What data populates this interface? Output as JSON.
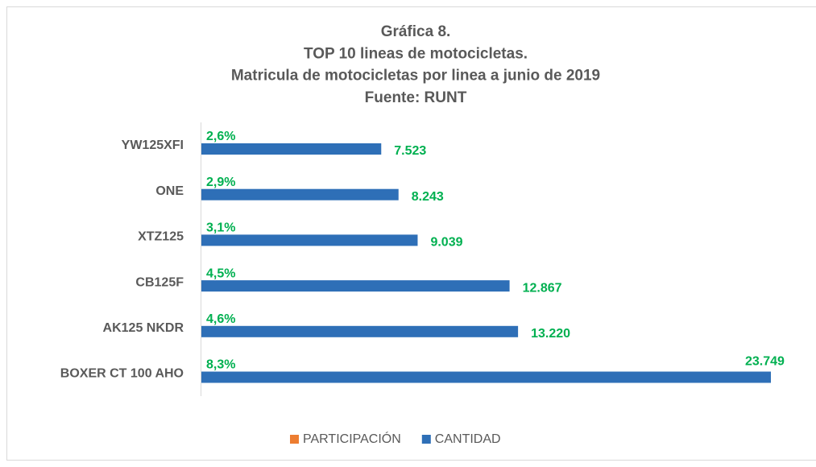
{
  "chart_data": {
    "type": "bar",
    "orientation": "horizontal",
    "title": [
      "Gráfica 8.",
      "TOP 10 lineas de motocicletas.",
      "Matricula de motocicletas por linea a junio de 2019",
      "Fuente: RUNT"
    ],
    "categories": [
      "YW125XFI",
      "ONE",
      "XTZ125",
      "CB125F",
      "AK125 NKDR",
      "BOXER CT 100 AHO"
    ],
    "series": [
      {
        "name": "PARTICIPACIÓN",
        "color": "#ed7d31",
        "values": [
          2.6,
          2.9,
          3.1,
          4.5,
          4.6,
          8.3
        ],
        "value_labels": [
          "2,6%",
          "2,9%",
          "3,1%",
          "4,5%",
          "4,6%",
          "8,3%"
        ]
      },
      {
        "name": "CANTIDAD",
        "color": "#2e6fb7",
        "values": [
          7523,
          8243,
          9039,
          12867,
          13220,
          23749
        ],
        "value_labels": [
          "7.523",
          "8.243",
          "9.039",
          "12.867",
          "13.220",
          "23.749"
        ]
      }
    ],
    "legend": "bottom"
  }
}
